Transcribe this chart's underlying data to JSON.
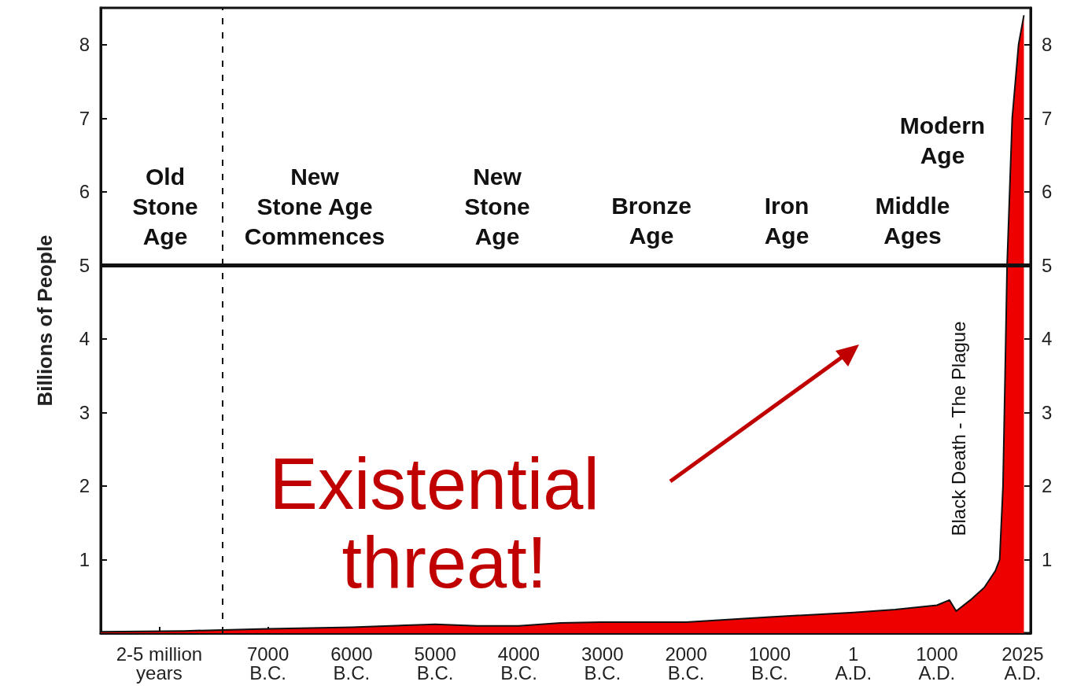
{
  "chart_data": {
    "type": "area",
    "ylabel": "Billions of People",
    "x": [
      -9000,
      -8000,
      -7000,
      -6000,
      -5000,
      -4500,
      -4000,
      -3500,
      -3000,
      -2000,
      -1000,
      1,
      500,
      1000,
      1150,
      1230,
      1400,
      1566,
      1700,
      1750,
      1790,
      1815,
      1839,
      1900,
      1976,
      2040
    ],
    "series": [
      {
        "color": "#ee0000",
        "values": [
          0.02,
          0.03,
          0.06,
          0.08,
          0.12,
          0.1,
          0.1,
          0.14,
          0.15,
          0.15,
          0.22,
          0.28,
          0.32,
          0.38,
          0.45,
          0.3,
          0.45,
          0.62,
          0.85,
          1,
          2,
          3.5,
          5,
          7,
          8,
          8.4
        ]
      }
    ],
    "xlim": [
      -9000,
      2120
    ],
    "xticks": [
      {
        "value": -8300,
        "label": "2-5 million\nyears"
      },
      {
        "value": -7000,
        "label": "7000\nB.C."
      },
      {
        "value": -6000,
        "label": "6000\nB.C."
      },
      {
        "value": -5000,
        "label": "5000\nB.C."
      },
      {
        "value": -4000,
        "label": "4000\nB.C."
      },
      {
        "value": -3000,
        "label": "3000\nB.C."
      },
      {
        "value": -2000,
        "label": "2000\nB.C."
      },
      {
        "value": -1000,
        "label": "1000\nB.C."
      },
      {
        "value": 1,
        "label": "1\nA.D."
      },
      {
        "value": 1000,
        "label": "1000\nA.D."
      },
      {
        "value": 2025,
        "label": "2025\nA.D."
      }
    ],
    "ylim": [
      0,
      8.5
    ],
    "yticks": [
      1,
      2,
      3,
      4,
      5,
      6,
      7,
      8
    ],
    "y2lim": [
      0,
      8.5
    ],
    "y2ticks": [
      1,
      2,
      3,
      4,
      5,
      6,
      7,
      8
    ],
    "ref_lines": [
      {
        "axis": "y",
        "value": 5,
        "color": "#111111",
        "line_style": "solid"
      },
      {
        "axis": "x",
        "value": -7540,
        "color": "#111111",
        "line_style": "dashed"
      }
    ],
    "annotations": [
      "Old\nStone\nAge",
      "New\nStone Age\nCommences",
      "New\nStone\nAge",
      "Bronze\nAge",
      "Iron\nAge",
      "Middle\nAges",
      "Modern\nAge",
      "Black Death - The Plague",
      "Existential threat!"
    ]
  }
}
